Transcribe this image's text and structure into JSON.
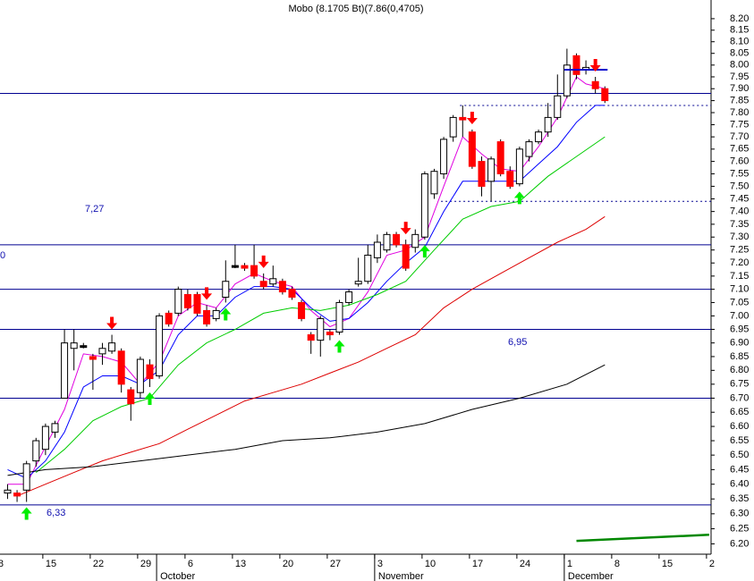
{
  "chart_data": {
    "type": "candlestick",
    "title": "Mobo (8.1705 Bt)(7.86(0,4705)",
    "log_scale": true,
    "xlim": [
      0.2,
      75.2
    ],
    "ylim": [
      6.166,
      8.282
    ],
    "yticks": [
      {
        "value": 6.2,
        "label": "6.20"
      },
      {
        "value": 6.25,
        "label": "6.25"
      },
      {
        "value": 6.3,
        "label": "6.30"
      },
      {
        "value": 6.35,
        "label": "6.35"
      },
      {
        "value": 6.4,
        "label": "6.40"
      },
      {
        "value": 6.45,
        "label": "6.45"
      },
      {
        "value": 6.5,
        "label": "6.50"
      },
      {
        "value": 6.55,
        "label": "6.55"
      },
      {
        "value": 6.6,
        "label": "6.60"
      },
      {
        "value": 6.65,
        "label": "6.65"
      },
      {
        "value": 6.7,
        "label": "6.70"
      },
      {
        "value": 6.75,
        "label": "6.75"
      },
      {
        "value": 6.8,
        "label": "6.80"
      },
      {
        "value": 6.85,
        "label": "6.85"
      },
      {
        "value": 6.9,
        "label": "6.90"
      },
      {
        "value": 6.95,
        "label": "6.95"
      },
      {
        "value": 7.0,
        "label": "7.00"
      },
      {
        "value": 7.05,
        "label": "7.05"
      },
      {
        "value": 7.1,
        "label": "7.10"
      },
      {
        "value": 7.15,
        "label": "7.15"
      },
      {
        "value": 7.2,
        "label": "7.20"
      },
      {
        "value": 7.25,
        "label": "7.25"
      },
      {
        "value": 7.3,
        "label": "7.30"
      },
      {
        "value": 7.35,
        "label": "7.35"
      },
      {
        "value": 7.4,
        "label": "7.40"
      },
      {
        "value": 7.45,
        "label": "7.45"
      },
      {
        "value": 7.5,
        "label": "7.50"
      },
      {
        "value": 7.55,
        "label": "7.55"
      },
      {
        "value": 7.6,
        "label": "7.60"
      },
      {
        "value": 7.65,
        "label": "7.65"
      },
      {
        "value": 7.7,
        "label": "7.70"
      },
      {
        "value": 7.75,
        "label": "7.75"
      },
      {
        "value": 7.8,
        "label": "7.80"
      },
      {
        "value": 7.85,
        "label": "7.85"
      },
      {
        "value": 7.9,
        "label": "7.90"
      },
      {
        "value": 7.95,
        "label": "7.95"
      },
      {
        "value": 8.0,
        "label": "8.00"
      },
      {
        "value": 8.05,
        "label": "8.05"
      },
      {
        "value": 8.1,
        "label": "8.10"
      },
      {
        "value": 8.15,
        "label": "8.15"
      },
      {
        "value": 8.2,
        "label": "8.20"
      }
    ],
    "xticks": [
      {
        "value": 0,
        "label": "8"
      },
      {
        "value": 5,
        "label": "15"
      },
      {
        "value": 10,
        "label": "22"
      },
      {
        "value": 15,
        "label": "29"
      },
      {
        "value": 20,
        "label": "6"
      },
      {
        "value": 25,
        "label": "13"
      },
      {
        "value": 30,
        "label": "20"
      },
      {
        "value": 35,
        "label": "27"
      },
      {
        "value": 40,
        "label": "3"
      },
      {
        "value": 45,
        "label": "10"
      },
      {
        "value": 50,
        "label": "17"
      },
      {
        "value": 55,
        "label": "24"
      },
      {
        "value": 60,
        "label": "1"
      },
      {
        "value": 65,
        "label": "8"
      },
      {
        "value": 70,
        "label": "15"
      },
      {
        "value": 75,
        "label": "2"
      }
    ],
    "months": [
      {
        "value": 17,
        "label": "October"
      },
      {
        "value": 40,
        "label": "November"
      },
      {
        "value": 60,
        "label": "December"
      }
    ],
    "up_color": "#ffffff",
    "down_color": "#ff0000",
    "flat_color": "#000000",
    "x": [
      1,
      2,
      3,
      4,
      5,
      6,
      7,
      8,
      9,
      10,
      11,
      12,
      13,
      14,
      15,
      16,
      17,
      18,
      19,
      20,
      21,
      22,
      23,
      24,
      25,
      26,
      27,
      28,
      29,
      30,
      31,
      32,
      33,
      34,
      35,
      36,
      37,
      38,
      39,
      40,
      41,
      42,
      43,
      44,
      45,
      46,
      47,
      48,
      49,
      50,
      51,
      52,
      53,
      54,
      55,
      56,
      57,
      58,
      59,
      60,
      61,
      62,
      63,
      64
    ],
    "open": [
      6.37,
      6.37,
      6.38,
      6.48,
      6.52,
      6.58,
      6.7,
      6.88,
      6.89,
      6.85,
      6.86,
      6.87,
      6.87,
      6.73,
      6.72,
      6.82,
      6.78,
      7.01,
      7.01,
      7.08,
      7.08,
      7.02,
      6.99,
      7.07,
      7.19,
      7.19,
      7.19,
      7.13,
      7.12,
      7.13,
      7.1,
      7.05,
      6.93,
      6.91,
      6.94,
      6.94,
      7.05,
      7.12,
      7.13,
      7.22,
      7.25,
      7.31,
      7.27,
      7.26,
      7.3,
      7.47,
      7.55,
      7.7,
      7.78,
      7.72,
      7.6,
      7.52,
      7.68,
      7.56,
      7.51,
      7.62,
      7.68,
      7.72,
      7.78,
      7.87,
      8.04,
      7.98,
      7.93,
      7.9
    ],
    "high": [
      6.4,
      6.38,
      6.48,
      6.56,
      6.61,
      6.62,
      6.95,
      6.95,
      6.9,
      6.86,
      6.9,
      6.93,
      6.88,
      6.74,
      6.85,
      6.84,
      7.01,
      7.02,
      7.11,
      7.1,
      7.09,
      7.04,
      7.03,
      7.21,
      7.27,
      7.2,
      7.27,
      7.16,
      7.19,
      7.14,
      7.11,
      7.06,
      6.94,
      7.0,
      6.95,
      7.06,
      7.1,
      7.22,
      7.27,
      7.31,
      7.32,
      7.32,
      7.29,
      7.33,
      7.56,
      7.57,
      7.7,
      7.79,
      7.83,
      7.73,
      7.62,
      7.62,
      7.69,
      7.58,
      7.66,
      7.69,
      7.73,
      7.84,
      7.96,
      8.07,
      8.05,
      8.02,
      7.95,
      7.91
    ],
    "low": [
      6.35,
      6.34,
      6.34,
      6.46,
      6.5,
      6.56,
      6.7,
      6.8,
      6.88,
      6.73,
      6.82,
      6.86,
      6.72,
      6.62,
      6.7,
      6.74,
      6.77,
      6.96,
      7.0,
      7.02,
      7.0,
      6.96,
      6.98,
      7.05,
      7.18,
      7.17,
      7.14,
      7.1,
      7.11,
      7.08,
      7.06,
      6.98,
      6.86,
      6.85,
      6.91,
      6.93,
      7.04,
      7.11,
      7.12,
      7.2,
      7.24,
      7.26,
      7.17,
      7.24,
      7.29,
      7.45,
      7.53,
      7.68,
      7.7,
      7.57,
      7.46,
      7.44,
      7.54,
      7.49,
      7.5,
      7.6,
      7.67,
      7.7,
      7.77,
      7.86,
      7.94,
      7.96,
      7.88,
      7.84
    ],
    "close": [
      6.38,
      6.36,
      6.47,
      6.55,
      6.6,
      6.61,
      6.9,
      6.9,
      6.89,
      6.84,
      6.88,
      6.9,
      6.75,
      6.68,
      6.84,
      6.77,
      7.0,
      6.97,
      7.1,
      7.03,
      7.01,
      6.97,
      7.02,
      7.13,
      7.19,
      7.18,
      7.15,
      7.11,
      7.14,
      7.09,
      7.07,
      6.99,
      6.91,
      6.99,
      6.93,
      7.05,
      7.09,
      7.13,
      7.23,
      7.28,
      7.31,
      7.27,
      7.18,
      7.31,
      7.55,
      7.56,
      7.69,
      7.78,
      7.77,
      7.58,
      7.5,
      7.61,
      7.55,
      7.5,
      7.65,
      7.68,
      7.72,
      7.78,
      7.87,
      8.0,
      7.96,
      7.99,
      7.9,
      7.85
    ],
    "buy_signals": [
      3,
      16,
      24,
      36,
      45,
      55
    ],
    "sell_signals": [
      12,
      22,
      28,
      43,
      50,
      63
    ],
    "buy_color": "#00ee00",
    "sell_color": "#ff0000",
    "series": [
      {
        "color": "#e000e0",
        "x": [
          1,
          3,
          5,
          7,
          9,
          11,
          13,
          15,
          17,
          19,
          21,
          23,
          25,
          27,
          29,
          31,
          33,
          35,
          37,
          39,
          41,
          43,
          45,
          47,
          49,
          51,
          53,
          55,
          57,
          59,
          61,
          62,
          64
        ],
        "values": [
          6.4,
          6.4,
          6.53,
          6.66,
          6.86,
          6.85,
          6.83,
          6.75,
          6.83,
          7.0,
          7.05,
          7.03,
          7.12,
          7.16,
          7.13,
          7.11,
          7.02,
          6.96,
          6.99,
          7.09,
          7.23,
          7.25,
          7.3,
          7.5,
          7.7,
          7.63,
          7.57,
          7.56,
          7.66,
          7.78,
          7.95,
          7.92,
          7.9
        ]
      },
      {
        "color": "#0000ff",
        "x": [
          1,
          3,
          5,
          7,
          9,
          11,
          13,
          15,
          17,
          19,
          21,
          23,
          25,
          27,
          29,
          31,
          33,
          35,
          37,
          39,
          41,
          43,
          45,
          47,
          49,
          51,
          53,
          55,
          57,
          59,
          61,
          63,
          64
        ],
        "values": [
          6.45,
          6.42,
          6.48,
          6.58,
          6.74,
          6.78,
          6.78,
          6.75,
          6.8,
          6.93,
          7.0,
          7.0,
          7.07,
          7.11,
          7.11,
          7.1,
          7.03,
          6.98,
          6.99,
          7.05,
          7.13,
          7.2,
          7.26,
          7.4,
          7.52,
          7.52,
          7.52,
          7.52,
          7.59,
          7.66,
          7.76,
          7.83,
          7.83
        ]
      },
      {
        "color": "#00cc00",
        "x": [
          4,
          7,
          10,
          13,
          16,
          19,
          22,
          25,
          28,
          31,
          34,
          37,
          40,
          43,
          46,
          49,
          52,
          55,
          58,
          61,
          64
        ],
        "values": [
          6.44,
          6.52,
          6.62,
          6.67,
          6.7,
          6.82,
          6.9,
          6.95,
          7.01,
          7.03,
          7.02,
          7.04,
          7.08,
          7.13,
          7.25,
          7.37,
          7.42,
          7.44,
          7.54,
          7.62,
          7.7
        ]
      },
      {
        "color": "#dd0000",
        "x": [
          2,
          5,
          8,
          11,
          14,
          17,
          20,
          23,
          26,
          29,
          32,
          35,
          38,
          41,
          44,
          47,
          50,
          53,
          56,
          59,
          62,
          64
        ],
        "values": [
          6.36,
          6.4,
          6.44,
          6.48,
          6.51,
          6.54,
          6.59,
          6.64,
          6.69,
          6.72,
          6.75,
          6.79,
          6.83,
          6.88,
          6.93,
          7.03,
          7.1,
          7.16,
          7.22,
          7.28,
          7.33,
          7.38
        ]
      },
      {
        "color": "#000000",
        "x": [
          1,
          5,
          10,
          15,
          20,
          25,
          30,
          35,
          40,
          45,
          50,
          55,
          60,
          64
        ],
        "values": [
          6.43,
          6.45,
          6.46,
          6.48,
          6.5,
          6.52,
          6.55,
          6.56,
          6.58,
          6.61,
          6.66,
          6.7,
          6.75,
          6.82
        ]
      },
      {
        "color": "#008800",
        "x": [
          61,
          75
        ],
        "values": [
          6.21,
          6.23
        ]
      }
    ],
    "hline_color": "#000090",
    "hlines": [
      {
        "value": 7.88
      },
      {
        "value": 7.27,
        "label": "7,27"
      },
      {
        "value": 7.1
      },
      {
        "value": 6.95,
        "label": "6,95"
      },
      {
        "value": 6.7
      },
      {
        "value": 6.33,
        "label": "6,33"
      }
    ],
    "dotted_lines": [
      {
        "value": 7.83,
        "from": 49
      },
      {
        "value": 7.44,
        "from": 47
      }
    ],
    "segments": [
      {
        "value": 7.98,
        "from": 60,
        "to": 64
      }
    ],
    "annotations": [
      "0"
    ]
  }
}
